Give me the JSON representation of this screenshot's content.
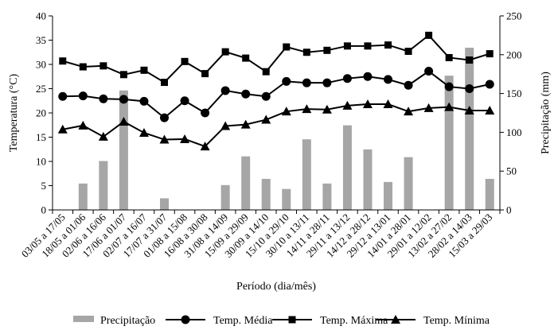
{
  "chart_data": {
    "type": "bar+line",
    "title": "",
    "xlabel": "Período (dia/mês)",
    "ylabel_left": "Temperatura (°C)",
    "ylabel_right": "Precipitação (mm)",
    "ylim_left": [
      0,
      40
    ],
    "ylim_right": [
      0,
      250
    ],
    "yticks_left": [
      "0",
      "5",
      "10",
      "15",
      "20",
      "25",
      "30",
      "35",
      "40"
    ],
    "yticks_right": [
      "0",
      "50",
      "100",
      "150",
      "200",
      "250"
    ],
    "grid": false,
    "legend_position": "bottom",
    "categories": [
      "03/05 a 17/05",
      "18/05 a 01/06",
      "02/06 a 16/06",
      "17/06 a 01/07",
      "02/07 a 16/07",
      "17/07 a 31/07",
      "01/08 a 15/08",
      "16/08 a 30/08",
      "31/08 a 14/09",
      "15/09 a 29/09",
      "30/09 a 14/10",
      "15/10 a 29/10",
      "30/10 a 13/11",
      "14/11 a 28/11",
      "29/11 a 13/12",
      "14/12 a 28/12",
      "29/12 a 13/01",
      "14/01 a 28/01",
      "29/01 a 12/02",
      "13/02 a 27/02",
      "28/02 a 14/03",
      "15/03 a 29/03"
    ],
    "series": [
      {
        "name": "Precipitação",
        "kind": "bar",
        "axis": "right",
        "color": "#a6a6a6",
        "values": [
          0,
          34,
          63,
          154,
          0,
          15,
          0,
          0,
          32,
          69,
          40,
          27,
          91,
          34,
          109,
          78,
          36,
          68,
          0,
          173,
          209,
          40
        ]
      },
      {
        "name": "Temp. Média",
        "kind": "line",
        "marker": "circle",
        "axis": "left",
        "color": "#000000",
        "values": [
          23.4,
          23.5,
          22.9,
          22.8,
          22.4,
          19.0,
          22.5,
          20.0,
          24.6,
          23.9,
          23.4,
          26.5,
          26.2,
          26.2,
          27.1,
          27.5,
          26.9,
          25.7,
          28.6,
          25.4,
          25.0,
          25.9
        ]
      },
      {
        "name": "Temp. Máxima",
        "kind": "line",
        "marker": "square",
        "axis": "left",
        "color": "#000000",
        "values": [
          30.7,
          29.5,
          29.7,
          27.9,
          28.8,
          26.3,
          30.6,
          28.1,
          32.6,
          31.3,
          28.5,
          33.6,
          32.5,
          32.9,
          33.8,
          33.8,
          34.0,
          32.7,
          36.0,
          31.4,
          30.9,
          32.2
        ]
      },
      {
        "name": "Temp. Mínima",
        "kind": "line",
        "marker": "triangle",
        "axis": "left",
        "color": "#000000",
        "values": [
          16.6,
          17.4,
          15.1,
          18.2,
          15.9,
          14.5,
          14.6,
          13.1,
          17.3,
          17.6,
          18.6,
          20.3,
          20.8,
          20.7,
          21.5,
          21.8,
          21.8,
          20.3,
          21.0,
          21.2,
          20.5,
          20.5
        ]
      }
    ]
  }
}
